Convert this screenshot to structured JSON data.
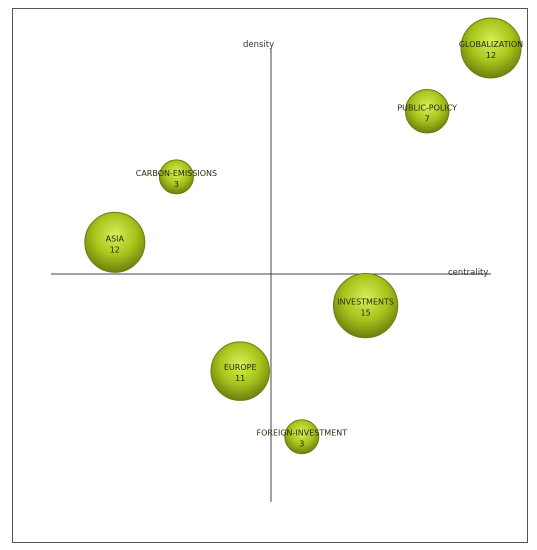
{
  "chart_data": {
    "type": "scatter",
    "subtype": "strategic-diagram-bubble",
    "xlabel": "centrality",
    "ylabel": "density",
    "title": "",
    "grid": false,
    "colors": {
      "bubble_fill": "#a8c51c",
      "bubble_stroke": "#6b7f0f",
      "bubble_highlight": "#d8ee5a"
    },
    "points": [
      {
        "label": "GLOBALIZATION",
        "count": 12,
        "x": 1.0,
        "y": 1.0
      },
      {
        "label": "PUBLIC-POLICY",
        "count": 7,
        "x": 0.71,
        "y": 0.72
      },
      {
        "label": "CARBON-EMISSIONS",
        "count": 3,
        "x": -0.43,
        "y": 0.43
      },
      {
        "label": "ASIA",
        "count": 12,
        "x": -0.71,
        "y": 0.14
      },
      {
        "label": "INVESTMENTS",
        "count": 15,
        "x": 0.43,
        "y": -0.14
      },
      {
        "label": "EUROPE",
        "count": 11,
        "x": -0.14,
        "y": -0.43
      },
      {
        "label": "FOREIGN-INVESTMENT",
        "count": 3,
        "x": 0.14,
        "y": -0.72
      }
    ]
  }
}
